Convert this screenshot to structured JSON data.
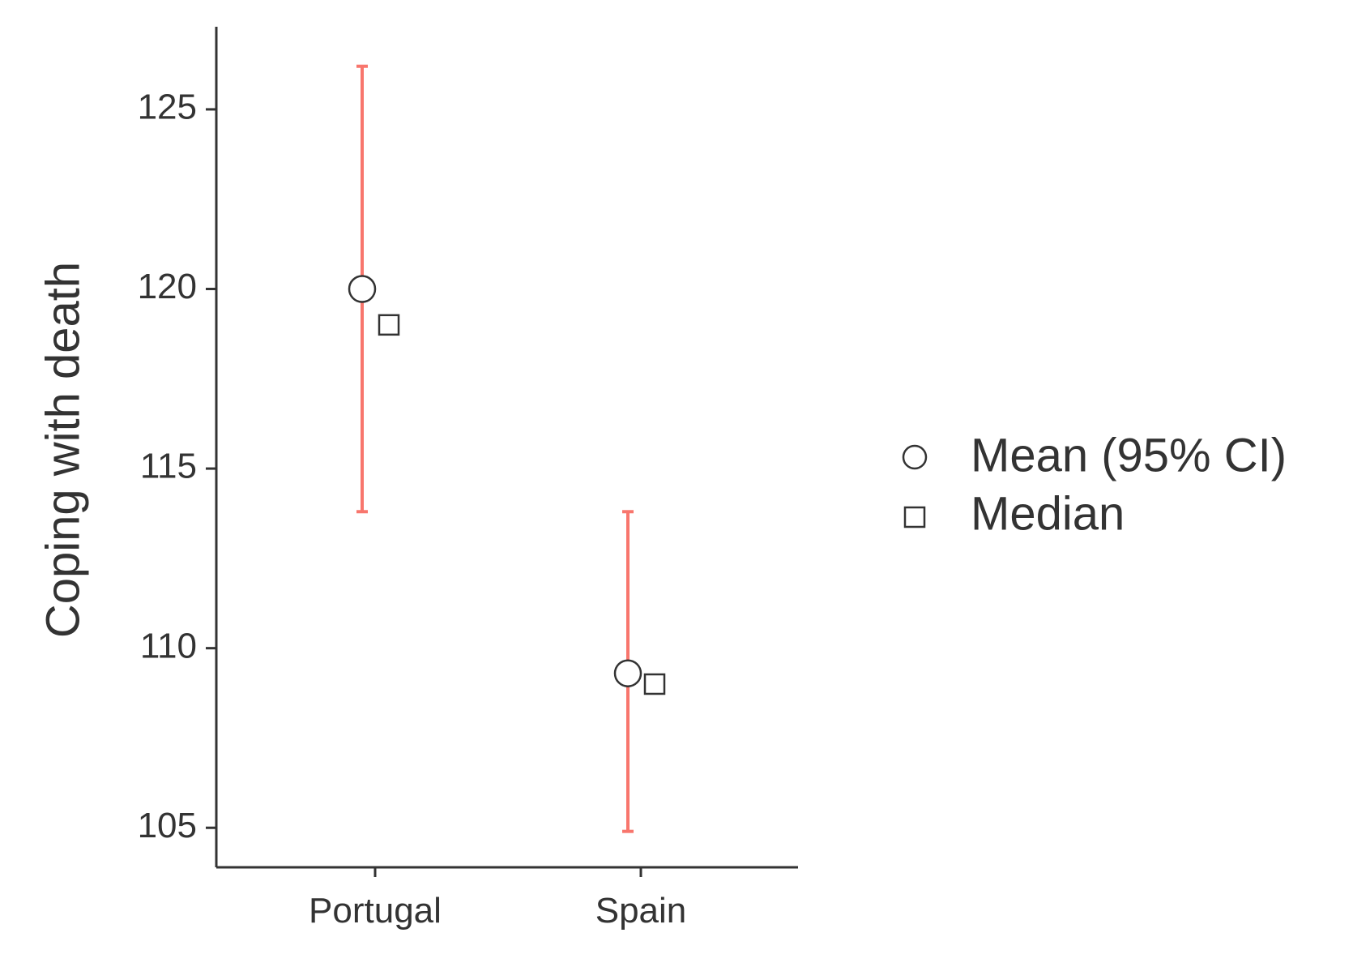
{
  "chart_data": {
    "type": "scatter",
    "ylabel": "Coping with death",
    "xlabel": "",
    "categories": [
      "Portugal",
      "Spain"
    ],
    "ylim": [
      103.9,
      127.3
    ],
    "yticks": [
      105,
      110,
      115,
      120,
      125
    ],
    "series": [
      {
        "name": "Mean (95% CI)",
        "marker": "circle",
        "values": [
          120.0,
          109.3
        ],
        "ci_lower": [
          113.8,
          104.9
        ],
        "ci_upper": [
          126.2,
          113.8
        ]
      },
      {
        "name": "Median",
        "marker": "square",
        "values": [
          119.0,
          109.0
        ]
      }
    ],
    "errorbar_color": "#f8766d",
    "legend_position": "right",
    "grid": false
  }
}
